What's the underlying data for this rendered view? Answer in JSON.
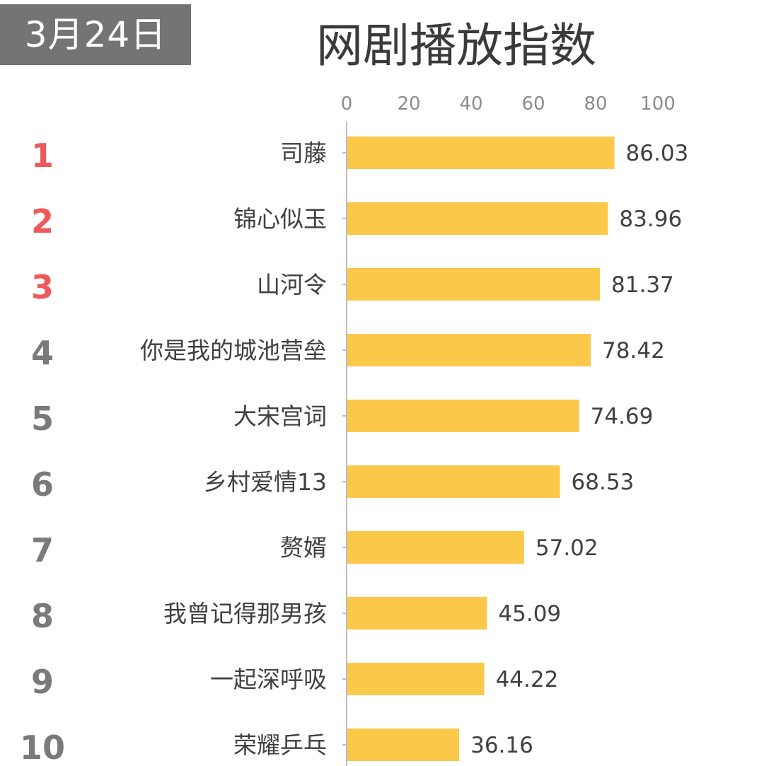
{
  "header": {
    "date": "3月24日",
    "title": "网剧播放指数"
  },
  "colors": {
    "bar": "#FCC84A",
    "axis": "#BDBDBD",
    "tick_text": "#8C8C8C",
    "label_text": "#404040",
    "value_text": "#404040",
    "rank_top3": "#EE5A5A",
    "rank_other": "#7A7A7A",
    "date_badge_bg": "#747474"
  },
  "ranks": [
    "1",
    "2",
    "3",
    "4",
    "5",
    "6",
    "7",
    "8",
    "9",
    "10"
  ],
  "chart_data": {
    "type": "bar",
    "orientation": "horizontal",
    "title": "网剧播放指数",
    "categories": [
      "司藤",
      "锦心似玉",
      "山河令",
      "你是我的城池营垒",
      "大宋宫词",
      "乡村爱情13",
      "赘婿",
      "我曾记得那男孩",
      "一起深呼吸",
      "荣耀乒乓"
    ],
    "values": [
      86.03,
      83.96,
      81.37,
      78.42,
      74.69,
      68.53,
      57.02,
      45.09,
      44.22,
      36.16
    ],
    "value_labels": [
      "86.03",
      "83.96",
      "81.37",
      "78.42",
      "74.69",
      "68.53",
      "57.02",
      "45.09",
      "44.22",
      "36.16"
    ],
    "xlim": [
      0,
      100
    ],
    "x_ticks": [
      "0",
      "20",
      "40",
      "60",
      "80",
      "100"
    ],
    "axis_position": "top",
    "grid": false,
    "legend": "none"
  }
}
